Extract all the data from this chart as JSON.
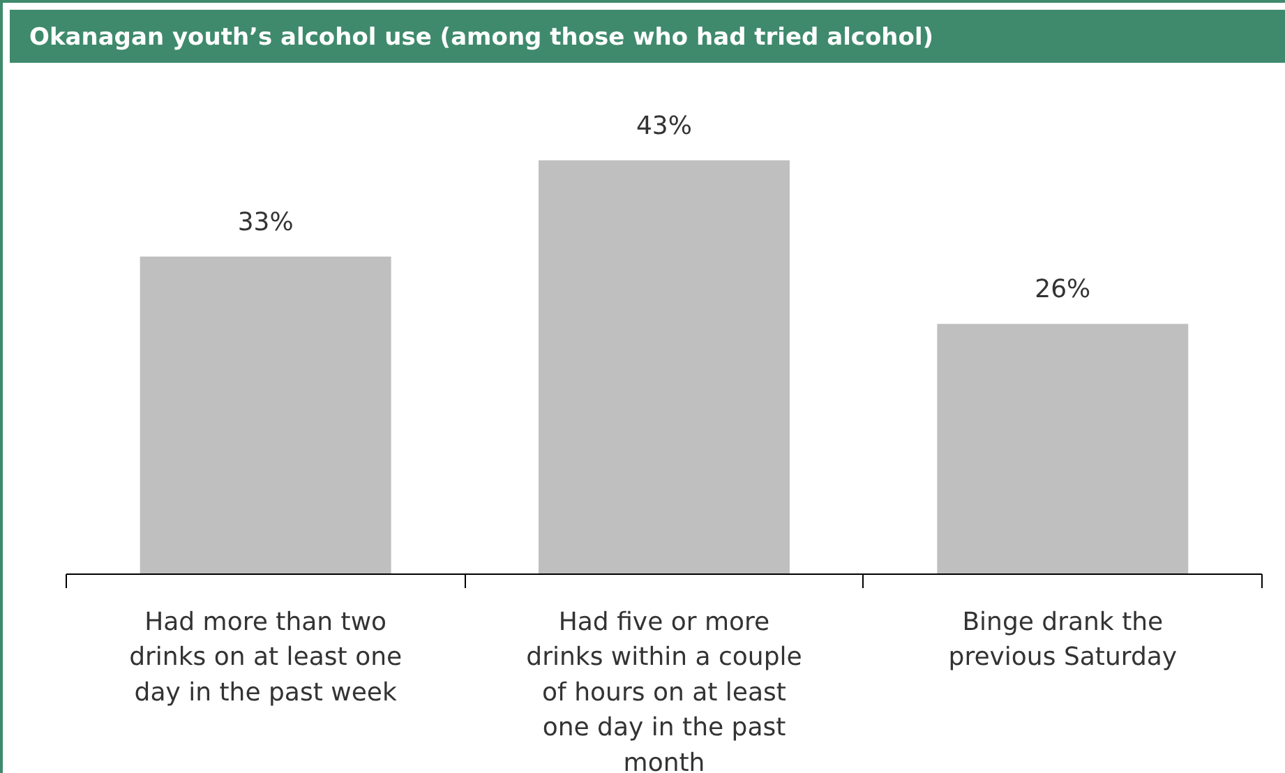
{
  "chart_data": {
    "type": "bar",
    "title": "Okanagan youth’s alcohol use (among those who had tried alcohol)",
    "categories": [
      "Had more than two drinks on at least one day in the past week",
      "Had five or more drinks within a couple of hours on at least one day in the past month",
      "Binge drank the previous Saturday"
    ],
    "values": [
      33,
      43,
      26
    ],
    "color": "#bfbfbf",
    "data_labels": true,
    "value_labels": [
      "33%",
      "43%",
      "26%"
    ]
  }
}
